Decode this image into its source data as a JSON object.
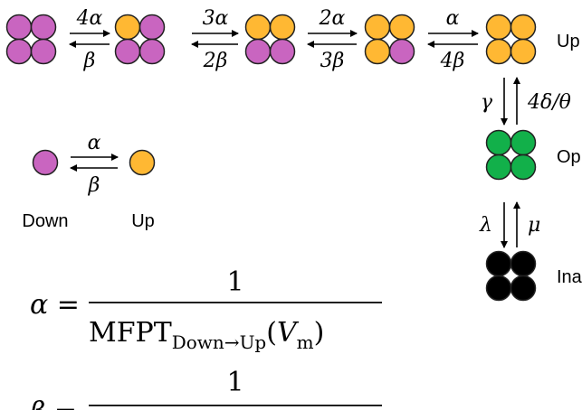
{
  "colors": {
    "down": "#c965c0",
    "up": "#ffb833",
    "open": "#12b04a",
    "inactive": "#000000",
    "stroke": "#222222"
  },
  "transitions": {
    "r1_forward": "4α",
    "r1_back": "β",
    "r2_forward": "3α",
    "r2_back": "2β",
    "r3_forward": "2α",
    "r3_back": "3β",
    "r4_forward": "α",
    "r4_back": "4β",
    "up_to_open": "γ",
    "open_to_up": "4δ/θ",
    "open_to_inactive": "λ",
    "inactive_to_open": "μ",
    "single_forward": "α",
    "single_back": "β"
  },
  "state_labels": {
    "up": "Up",
    "open": "Op",
    "inactive": "Ina",
    "single_down": "Down",
    "single_up": "Up"
  },
  "equations": {
    "alpha_lhs": "α =",
    "alpha_num": "1",
    "alpha_den_main": "MFPT",
    "alpha_den_sub": "Down→Up",
    "alpha_den_arg": "(",
    "alpha_den_var": "V",
    "alpha_den_var_sub": "m",
    "alpha_den_close": ")",
    "beta_lhs": "β =",
    "beta_num": "1"
  }
}
